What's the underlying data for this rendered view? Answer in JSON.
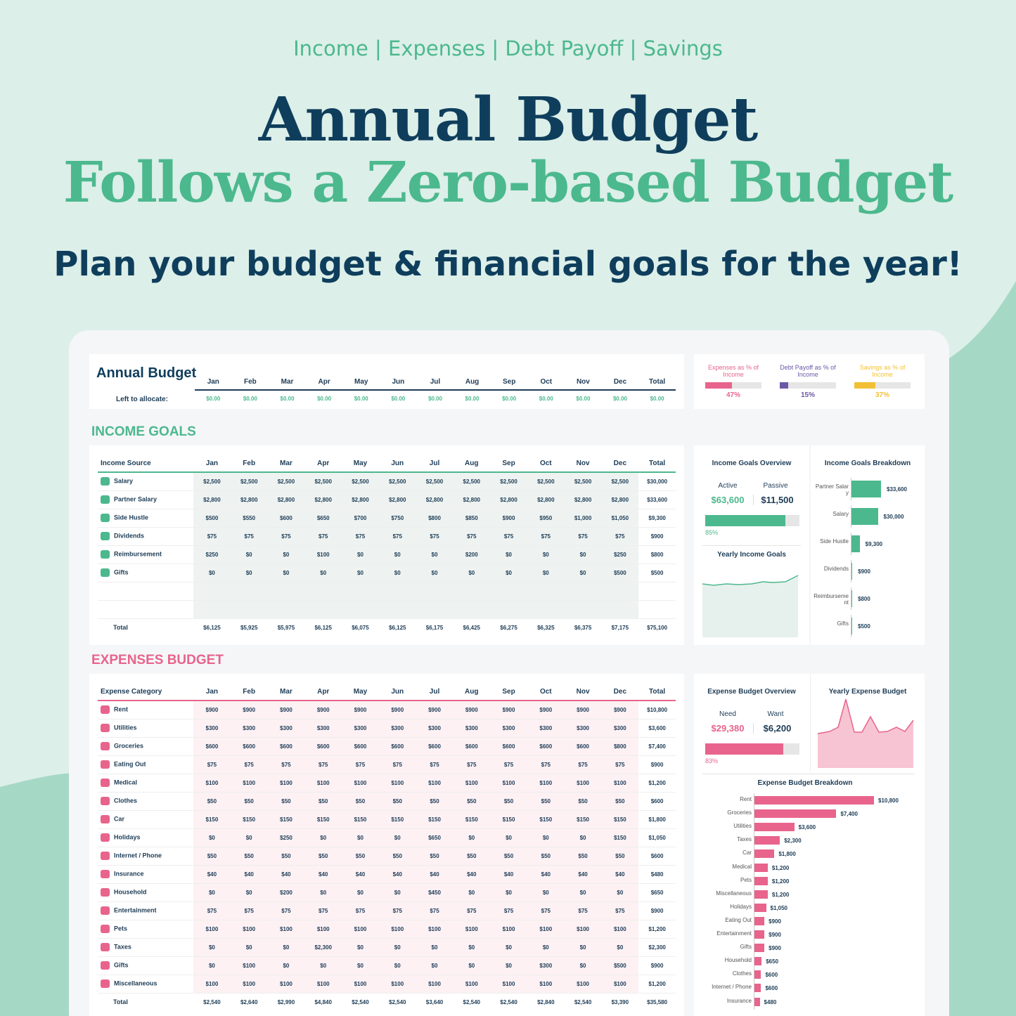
{
  "hero": {
    "tagline": "Income | Expenses | Debt Payoff | Savings",
    "title1": "Annual Budget",
    "title2": "Follows a Zero-based Budget",
    "subtitle": "Plan your budget & financial goals for the year!"
  },
  "colors": {
    "green": "#4cb88e",
    "pink": "#e8648c",
    "purple": "#6a58a6",
    "yellow": "#f2c035",
    "navy": "#0f3e5c"
  },
  "months": [
    "Jan",
    "Feb",
    "Mar",
    "Apr",
    "May",
    "Jun",
    "Jul",
    "Aug",
    "Sep",
    "Oct",
    "Nov",
    "Dec",
    "Total"
  ],
  "summary": {
    "title": "Annual Budget",
    "left_label": "Left to allocate:",
    "left_values": [
      "$0.00",
      "$0.00",
      "$0.00",
      "$0.00",
      "$0.00",
      "$0.00",
      "$0.00",
      "$0.00",
      "$0.00",
      "$0.00",
      "$0.00",
      "$0.00",
      "$0.00"
    ]
  },
  "ratios": [
    {
      "label": "Expenses as % of Income",
      "value": "47%",
      "fraction": 0.47,
      "color": "#e8648c"
    },
    {
      "label": "Debt Payoff as % of Income",
      "value": "15%",
      "fraction": 0.15,
      "color": "#6a58a6"
    },
    {
      "label": "Savings as % of Income",
      "value": "37%",
      "fraction": 0.37,
      "color": "#f2c035"
    }
  ],
  "income": {
    "section_title": "INCOME GOALS",
    "col_header": "Income Source",
    "rows": [
      {
        "icon": "briefcase-icon",
        "name": "Salary",
        "values": [
          "$2,500",
          "$2,500",
          "$2,500",
          "$2,500",
          "$2,500",
          "$2,500",
          "$2,500",
          "$2,500",
          "$2,500",
          "$2,500",
          "$2,500",
          "$2,500",
          "$30,000"
        ]
      },
      {
        "icon": "briefcase-icon",
        "name": "Partner Salary",
        "values": [
          "$2,800",
          "$2,800",
          "$2,800",
          "$2,800",
          "$2,800",
          "$2,800",
          "$2,800",
          "$2,800",
          "$2,800",
          "$2,800",
          "$2,800",
          "$2,800",
          "$33,600"
        ]
      },
      {
        "icon": "laptop-icon",
        "name": "Side Hustle",
        "values": [
          "$500",
          "$550",
          "$600",
          "$650",
          "$700",
          "$750",
          "$800",
          "$850",
          "$900",
          "$950",
          "$1,000",
          "$1,050",
          "$9,300"
        ]
      },
      {
        "icon": "pie-chart-icon",
        "name": "Dividends",
        "values": [
          "$75",
          "$75",
          "$75",
          "$75",
          "$75",
          "$75",
          "$75",
          "$75",
          "$75",
          "$75",
          "$75",
          "$75",
          "$900"
        ]
      },
      {
        "icon": "wallet-icon",
        "name": "Reimbursement",
        "values": [
          "$250",
          "$0",
          "$0",
          "$100",
          "$0",
          "$0",
          "$0",
          "$200",
          "$0",
          "$0",
          "$0",
          "$250",
          "$800"
        ]
      },
      {
        "icon": "gift-icon",
        "name": "Gifts",
        "values": [
          "$0",
          "$0",
          "$0",
          "$0",
          "$0",
          "$0",
          "$0",
          "$0",
          "$0",
          "$0",
          "$0",
          "$500",
          "$500"
        ]
      }
    ],
    "total_label": "Total",
    "totals": [
      "$6,125",
      "$5,925",
      "$5,975",
      "$6,125",
      "$6,075",
      "$6,125",
      "$6,175",
      "$6,425",
      "$6,275",
      "$6,325",
      "$6,375",
      "$7,175",
      "$75,100"
    ],
    "overview": {
      "title": "Income Goals Overview",
      "active_label": "Active",
      "active_value": "$63,600",
      "passive_label": "Passive",
      "passive_value": "$11,500",
      "pct": "85%",
      "fraction": 0.85
    },
    "yearly_title": "Yearly Income Goals",
    "breakdown_title": "Income Goals Breakdown",
    "breakdown": [
      {
        "label": "Partner Salary",
        "value": 33600,
        "text": "$33,600"
      },
      {
        "label": "Salary",
        "value": 30000,
        "text": "$30,000"
      },
      {
        "label": "Side Hustle",
        "value": 9300,
        "text": "$9,300"
      },
      {
        "label": "Dividends",
        "value": 900,
        "text": "$900"
      },
      {
        "label": "Reimbursement",
        "value": 800,
        "text": "$800"
      },
      {
        "label": "Gifts",
        "value": 500,
        "text": "$500"
      }
    ]
  },
  "expenses": {
    "section_title": "EXPENSES BUDGET",
    "col_header": "Expense Category",
    "rows": [
      {
        "icon": "home-icon",
        "name": "Rent",
        "values": [
          "$900",
          "$900",
          "$900",
          "$900",
          "$900",
          "$900",
          "$900",
          "$900",
          "$900",
          "$900",
          "$900",
          "$900",
          "$10,800"
        ]
      },
      {
        "icon": "flame-icon",
        "name": "Utilities",
        "values": [
          "$300",
          "$300",
          "$300",
          "$300",
          "$300",
          "$300",
          "$300",
          "$300",
          "$300",
          "$300",
          "$300",
          "$300",
          "$3,600"
        ]
      },
      {
        "icon": "basket-icon",
        "name": "Groceries",
        "values": [
          "$600",
          "$600",
          "$600",
          "$600",
          "$600",
          "$600",
          "$600",
          "$600",
          "$600",
          "$600",
          "$600",
          "$800",
          "$7,400"
        ]
      },
      {
        "icon": "cup-icon",
        "name": "Eating Out",
        "values": [
          "$75",
          "$75",
          "$75",
          "$75",
          "$75",
          "$75",
          "$75",
          "$75",
          "$75",
          "$75",
          "$75",
          "$75",
          "$900"
        ]
      },
      {
        "icon": "heart-icon",
        "name": "Medical",
        "values": [
          "$100",
          "$100",
          "$100",
          "$100",
          "$100",
          "$100",
          "$100",
          "$100",
          "$100",
          "$100",
          "$100",
          "$100",
          "$1,200"
        ]
      },
      {
        "icon": "shirt-icon",
        "name": "Clothes",
        "values": [
          "$50",
          "$50",
          "$50",
          "$50",
          "$50",
          "$50",
          "$50",
          "$50",
          "$50",
          "$50",
          "$50",
          "$50",
          "$600"
        ]
      },
      {
        "icon": "car-icon",
        "name": "Car",
        "values": [
          "$150",
          "$150",
          "$150",
          "$150",
          "$150",
          "$150",
          "$150",
          "$150",
          "$150",
          "$150",
          "$150",
          "$150",
          "$1,800"
        ]
      },
      {
        "icon": "plane-icon",
        "name": "Holidays",
        "values": [
          "$0",
          "$0",
          "$250",
          "$0",
          "$0",
          "$0",
          "$650",
          "$0",
          "$0",
          "$0",
          "$0",
          "$150",
          "$1,050"
        ]
      },
      {
        "icon": "wifi-icon",
        "name": "Internet / Phone",
        "values": [
          "$50",
          "$50",
          "$50",
          "$50",
          "$50",
          "$50",
          "$50",
          "$50",
          "$50",
          "$50",
          "$50",
          "$50",
          "$600"
        ]
      },
      {
        "icon": "umbrella-icon",
        "name": "Insurance",
        "values": [
          "$40",
          "$40",
          "$40",
          "$40",
          "$40",
          "$40",
          "$40",
          "$40",
          "$40",
          "$40",
          "$40",
          "$40",
          "$480"
        ]
      },
      {
        "icon": "house-icon",
        "name": "Household",
        "values": [
          "$0",
          "$0",
          "$200",
          "$0",
          "$0",
          "$0",
          "$450",
          "$0",
          "$0",
          "$0",
          "$0",
          "$0",
          "$650"
        ]
      },
      {
        "icon": "tv-icon",
        "name": "Entertainment",
        "values": [
          "$75",
          "$75",
          "$75",
          "$75",
          "$75",
          "$75",
          "$75",
          "$75",
          "$75",
          "$75",
          "$75",
          "$75",
          "$900"
        ]
      },
      {
        "icon": "paw-icon",
        "name": "Pets",
        "values": [
          "$100",
          "$100",
          "$100",
          "$100",
          "$100",
          "$100",
          "$100",
          "$100",
          "$100",
          "$100",
          "$100",
          "$100",
          "$1,200"
        ]
      },
      {
        "icon": "receipt-icon",
        "name": "Taxes",
        "values": [
          "$0",
          "$0",
          "$0",
          "$2,300",
          "$0",
          "$0",
          "$0",
          "$0",
          "$0",
          "$0",
          "$0",
          "$0",
          "$2,300"
        ]
      },
      {
        "icon": "gift-icon",
        "name": "Gifts",
        "values": [
          "$0",
          "$100",
          "$0",
          "$0",
          "$0",
          "$0",
          "$0",
          "$0",
          "$0",
          "$300",
          "$0",
          "$500",
          "$900"
        ]
      },
      {
        "icon": "sprout-icon",
        "name": "Miscellaneous",
        "values": [
          "$100",
          "$100",
          "$100",
          "$100",
          "$100",
          "$100",
          "$100",
          "$100",
          "$100",
          "$100",
          "$100",
          "$100",
          "$1,200"
        ]
      }
    ],
    "total_label": "Total",
    "totals": [
      "$2,540",
      "$2,640",
      "$2,990",
      "$4,840",
      "$2,540",
      "$2,540",
      "$3,640",
      "$2,540",
      "$2,540",
      "$2,840",
      "$2,540",
      "$3,390",
      "$35,580"
    ],
    "overview": {
      "title": "Expense Budget Overview",
      "need_label": "Need",
      "need_value": "$29,380",
      "want_label": "Want",
      "want_value": "$6,200",
      "pct": "83%",
      "fraction": 0.83
    },
    "yearly_title": "Yearly Expense Budget",
    "breakdown_title": "Expense Budget Breakdown",
    "breakdown": [
      {
        "label": "Rent",
        "value": 10800,
        "text": "$10,800"
      },
      {
        "label": "Groceries",
        "value": 7400,
        "text": "$7,400"
      },
      {
        "label": "Utilities",
        "value": 3600,
        "text": "$3,600"
      },
      {
        "label": "Taxes",
        "value": 2300,
        "text": "$2,300"
      },
      {
        "label": "Car",
        "value": 1800,
        "text": "$1,800"
      },
      {
        "label": "Medical",
        "value": 1200,
        "text": "$1,200"
      },
      {
        "label": "Pets",
        "value": 1200,
        "text": "$1,200"
      },
      {
        "label": "Miscellaneous",
        "value": 1200,
        "text": "$1,200"
      },
      {
        "label": "Holidays",
        "value": 1050,
        "text": "$1,050"
      },
      {
        "label": "Eating Out",
        "value": 900,
        "text": "$900"
      },
      {
        "label": "Entertainment",
        "value": 900,
        "text": "$900"
      },
      {
        "label": "Gifts",
        "value": 900,
        "text": "$900"
      },
      {
        "label": "Household",
        "value": 650,
        "text": "$650"
      },
      {
        "label": "Clothes",
        "value": 600,
        "text": "$600"
      },
      {
        "label": "Internet / Phone",
        "value": 600,
        "text": "$600"
      },
      {
        "label": "Insurance",
        "value": 480,
        "text": "$480"
      }
    ]
  }
}
